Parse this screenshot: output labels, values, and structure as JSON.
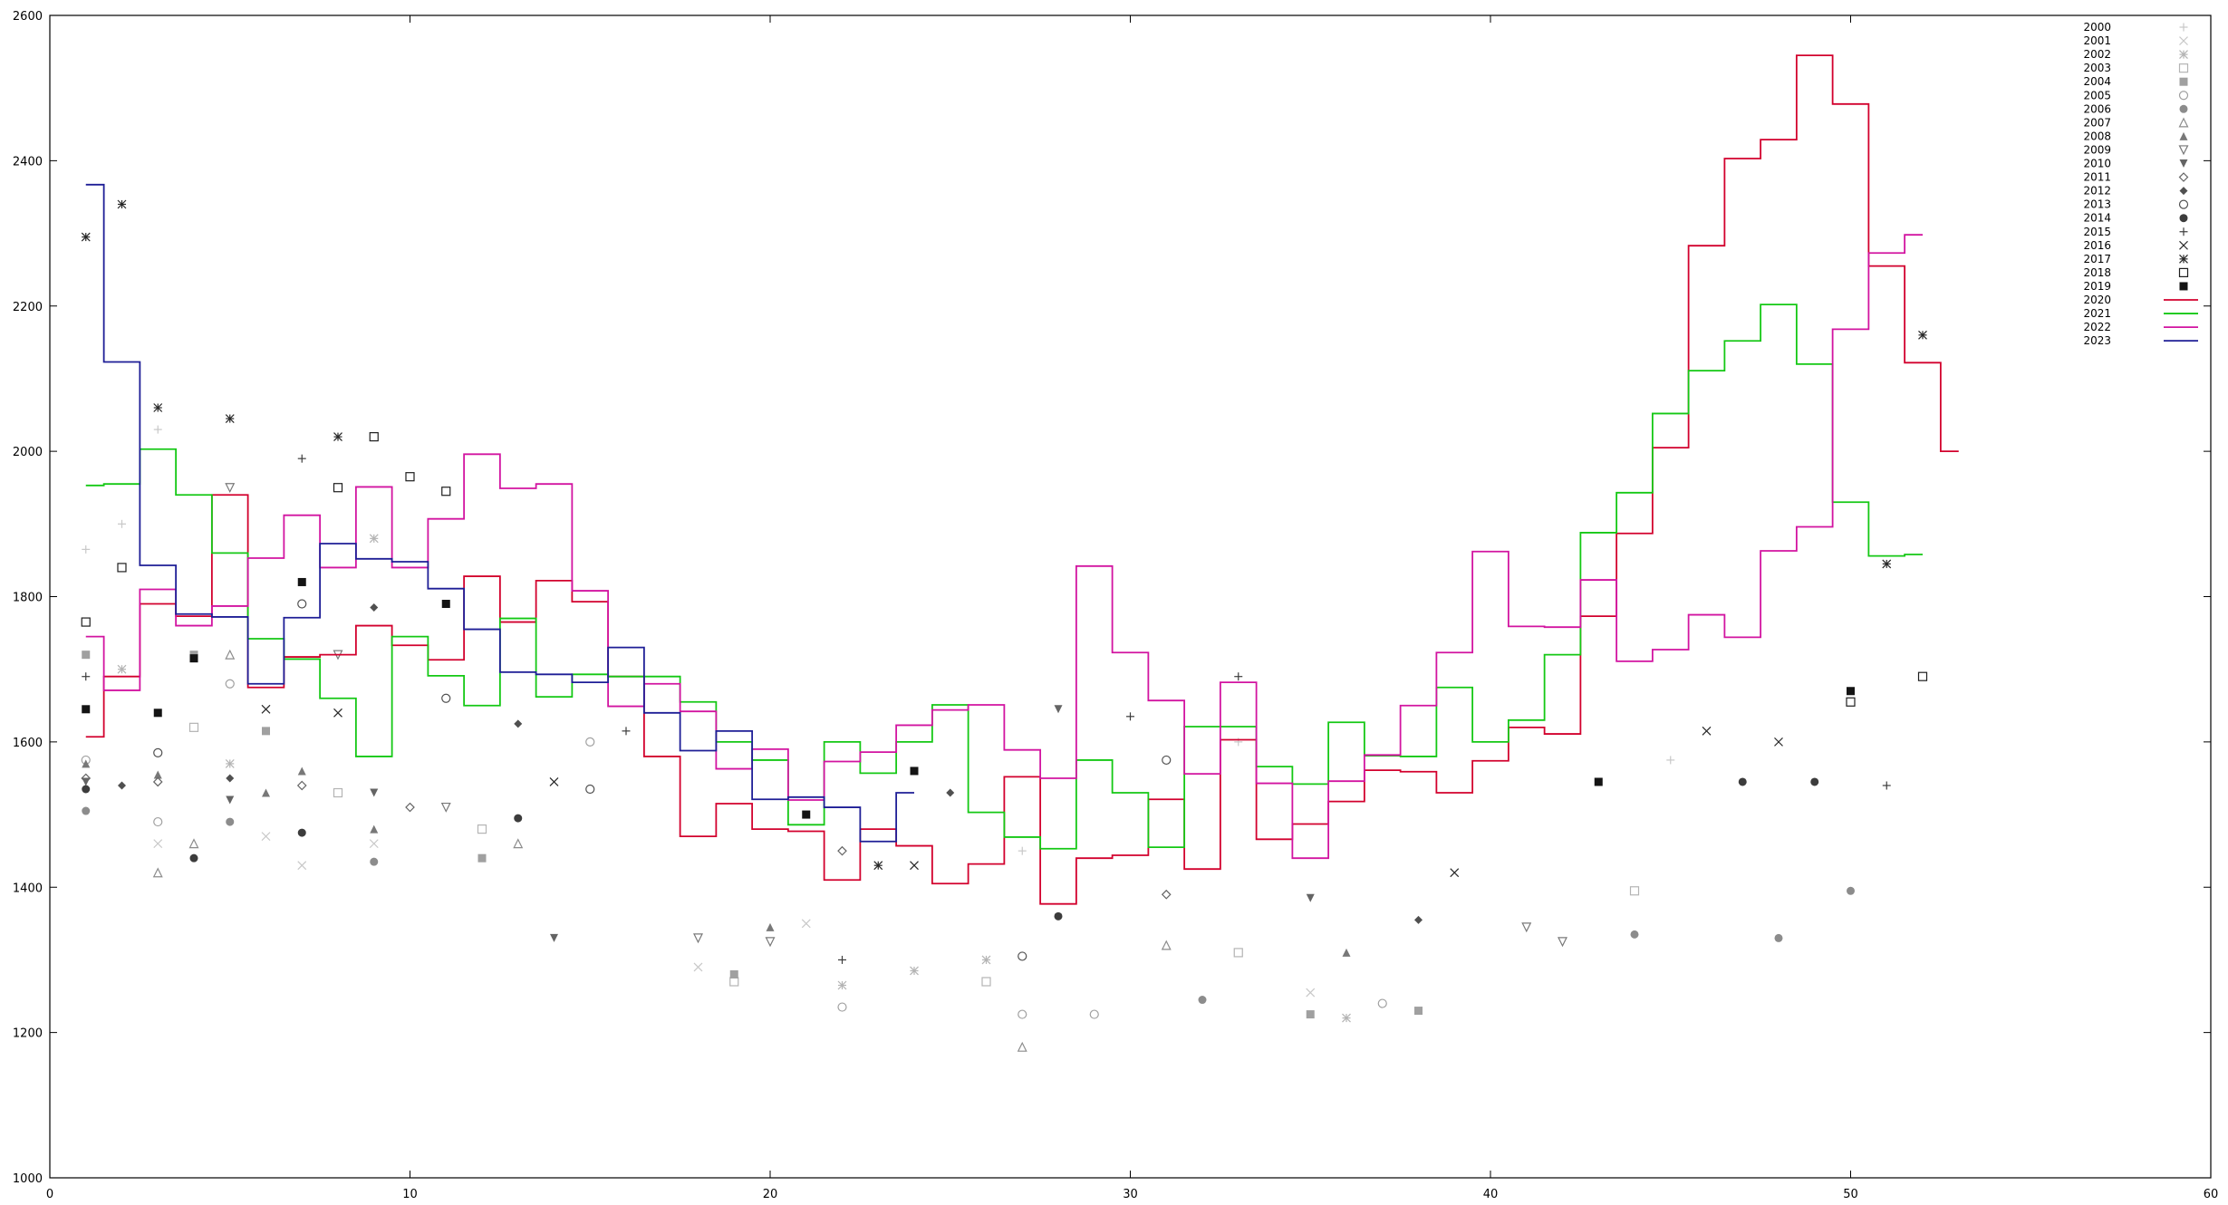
{
  "chart_data": {
    "type": "scatter",
    "title": "",
    "xlabel": "",
    "ylabel": "",
    "xlim": [
      0,
      60
    ],
    "ylim": [
      1000,
      2600
    ],
    "xticks": [
      0,
      10,
      20,
      30,
      40,
      50,
      60
    ],
    "yticks": [
      1000,
      1200,
      1400,
      1600,
      1800,
      2000,
      2200,
      2400,
      2600
    ],
    "grid": false,
    "legend_position": "top-right",
    "scatter_series": [
      {
        "name": "2000",
        "marker": "plus",
        "color": "#c8c8c8",
        "points": [
          [
            1,
            1865
          ],
          [
            2,
            1900
          ],
          [
            3,
            2030
          ],
          [
            27,
            1450
          ],
          [
            33,
            1600
          ],
          [
            45,
            1575
          ]
        ]
      },
      {
        "name": "2001",
        "marker": "x",
        "color": "#c8c8c8",
        "points": [
          [
            3,
            1460
          ],
          [
            6,
            1470
          ],
          [
            7,
            1430
          ],
          [
            9,
            1460
          ],
          [
            18,
            1290
          ],
          [
            21,
            1350
          ],
          [
            35,
            1255
          ]
        ]
      },
      {
        "name": "2002",
        "marker": "asterisk",
        "color": "#b4b4b4",
        "points": [
          [
            2,
            1700
          ],
          [
            5,
            1570
          ],
          [
            9,
            1880
          ],
          [
            22,
            1265
          ],
          [
            24,
            1285
          ],
          [
            26,
            1300
          ],
          [
            36,
            1220
          ]
        ]
      },
      {
        "name": "2003",
        "marker": "square-open",
        "color": "#b4b4b4",
        "points": [
          [
            4,
            1620
          ],
          [
            8,
            1530
          ],
          [
            12,
            1480
          ],
          [
            19,
            1270
          ],
          [
            26,
            1270
          ],
          [
            33,
            1310
          ],
          [
            44,
            1395
          ]
        ]
      },
      {
        "name": "2004",
        "marker": "square-filled",
        "color": "#a0a0a0",
        "points": [
          [
            1,
            1720
          ],
          [
            4,
            1720
          ],
          [
            6,
            1615
          ],
          [
            12,
            1440
          ],
          [
            19,
            1280
          ],
          [
            35,
            1225
          ],
          [
            38,
            1230
          ]
        ]
      },
      {
        "name": "2005",
        "marker": "circle-open",
        "color": "#a0a0a0",
        "points": [
          [
            1,
            1575
          ],
          [
            3,
            1490
          ],
          [
            5,
            1680
          ],
          [
            15,
            1600
          ],
          [
            22,
            1235
          ],
          [
            27,
            1225
          ],
          [
            29,
            1225
          ],
          [
            37,
            1240
          ]
        ]
      },
      {
        "name": "2006",
        "marker": "circle-filled",
        "color": "#8c8c8c",
        "points": [
          [
            1,
            1505
          ],
          [
            5,
            1490
          ],
          [
            9,
            1435
          ],
          [
            32,
            1245
          ],
          [
            44,
            1335
          ],
          [
            48,
            1330
          ],
          [
            50,
            1395
          ]
        ]
      },
      {
        "name": "2007",
        "marker": "triangle-open",
        "color": "#8c8c8c",
        "points": [
          [
            3,
            1420
          ],
          [
            4,
            1460
          ],
          [
            5,
            1720
          ],
          [
            13,
            1460
          ],
          [
            27,
            1180
          ],
          [
            31,
            1320
          ]
        ]
      },
      {
        "name": "2008",
        "marker": "triangle-filled",
        "color": "#787878",
        "points": [
          [
            1,
            1570
          ],
          [
            3,
            1555
          ],
          [
            6,
            1530
          ],
          [
            7,
            1560
          ],
          [
            9,
            1480
          ],
          [
            20,
            1345
          ],
          [
            36,
            1310
          ]
        ]
      },
      {
        "name": "2009",
        "marker": "triangle-down-open",
        "color": "#787878",
        "points": [
          [
            5,
            1950
          ],
          [
            8,
            1720
          ],
          [
            11,
            1510
          ],
          [
            18,
            1330
          ],
          [
            20,
            1325
          ],
          [
            41,
            1345
          ],
          [
            42,
            1325
          ]
        ]
      },
      {
        "name": "2010",
        "marker": "triangle-down-filled",
        "color": "#646464",
        "points": [
          [
            1,
            1545
          ],
          [
            5,
            1520
          ],
          [
            9,
            1530
          ],
          [
            14,
            1330
          ],
          [
            28,
            1645
          ],
          [
            35,
            1385
          ]
        ]
      },
      {
        "name": "2011",
        "marker": "diamond-open",
        "color": "#646464",
        "points": [
          [
            1,
            1550
          ],
          [
            3,
            1545
          ],
          [
            7,
            1540
          ],
          [
            10,
            1510
          ],
          [
            22,
            1450
          ],
          [
            31,
            1390
          ]
        ]
      },
      {
        "name": "2012",
        "marker": "diamond-filled",
        "color": "#505050",
        "points": [
          [
            2,
            1540
          ],
          [
            5,
            1550
          ],
          [
            9,
            1785
          ],
          [
            13,
            1625
          ],
          [
            25,
            1530
          ],
          [
            38,
            1355
          ]
        ]
      },
      {
        "name": "2013",
        "marker": "circle-open",
        "color": "#505050",
        "points": [
          [
            3,
            1585
          ],
          [
            7,
            1790
          ],
          [
            11,
            1660
          ],
          [
            15,
            1535
          ],
          [
            27,
            1305
          ],
          [
            31,
            1575
          ]
        ]
      },
      {
        "name": "2014",
        "marker": "circle-filled",
        "color": "#3c3c3c",
        "points": [
          [
            1,
            1535
          ],
          [
            4,
            1440
          ],
          [
            7,
            1475
          ],
          [
            13,
            1495
          ],
          [
            28,
            1360
          ],
          [
            47,
            1545
          ],
          [
            49,
            1545
          ]
        ]
      },
      {
        "name": "2015",
        "marker": "plus",
        "color": "#3c3c3c",
        "points": [
          [
            1,
            1690
          ],
          [
            7,
            1990
          ],
          [
            16,
            1615
          ],
          [
            22,
            1300
          ],
          [
            30,
            1635
          ],
          [
            33,
            1690
          ],
          [
            51,
            1540
          ]
        ]
      },
      {
        "name": "2016",
        "marker": "x",
        "color": "#282828",
        "points": [
          [
            6,
            1645
          ],
          [
            8,
            1640
          ],
          [
            14,
            1545
          ],
          [
            24,
            1430
          ],
          [
            39,
            1420
          ],
          [
            46,
            1615
          ],
          [
            48,
            1600
          ]
        ]
      },
      {
        "name": "2017",
        "marker": "asterisk",
        "color": "#282828",
        "points": [
          [
            1,
            2295
          ],
          [
            2,
            2340
          ],
          [
            3,
            2060
          ],
          [
            5,
            2045
          ],
          [
            8,
            2020
          ],
          [
            23,
            1430
          ],
          [
            51,
            1845
          ],
          [
            52,
            2160
          ]
        ]
      },
      {
        "name": "2018",
        "marker": "square-open",
        "color": "#1e1e1e",
        "points": [
          [
            1,
            1765
          ],
          [
            2,
            1840
          ],
          [
            8,
            1950
          ],
          [
            9,
            2020
          ],
          [
            11,
            1945
          ],
          [
            10,
            1965
          ],
          [
            50,
            1655
          ],
          [
            52,
            1690
          ]
        ]
      },
      {
        "name": "2019",
        "marker": "square-filled",
        "color": "#141414",
        "points": [
          [
            1,
            1645
          ],
          [
            3,
            1640
          ],
          [
            4,
            1715
          ],
          [
            7,
            1820
          ],
          [
            11,
            1790
          ],
          [
            21,
            1500
          ],
          [
            24,
            1560
          ],
          [
            43,
            1545
          ],
          [
            50,
            1670
          ]
        ]
      }
    ],
    "step_series": [
      {
        "name": "2020",
        "color": "#d2002d",
        "x": [
          1,
          2,
          3,
          4,
          5,
          6,
          7,
          8,
          9,
          10,
          11,
          12,
          13,
          14,
          15,
          16,
          17,
          18,
          19,
          20,
          21,
          22,
          23,
          24,
          25,
          26,
          27,
          28,
          29,
          30,
          31,
          32,
          33,
          34,
          35,
          36,
          37,
          38,
          39,
          40,
          41,
          42,
          43,
          44,
          45,
          46,
          47,
          48,
          49,
          50,
          51,
          52,
          53
        ],
        "values": [
          1607,
          1690,
          1790,
          1773,
          1940,
          1675,
          1717,
          1720,
          1760,
          1733,
          1713,
          1828,
          1765,
          1822,
          1793,
          1690,
          1580,
          1470,
          1515,
          1480,
          1477,
          1410,
          1480,
          1457,
          1405,
          1432,
          1552,
          1377,
          1440,
          1444,
          1521,
          1425,
          1603,
          1466,
          1487,
          1518,
          1561,
          1559,
          1530,
          1574,
          1620,
          1611,
          1773,
          1887,
          2005,
          2283,
          2403,
          2429,
          2545,
          2478,
          2255,
          2122,
          2000
        ]
      },
      {
        "name": "2021",
        "color": "#14c814",
        "x": [
          1,
          2,
          3,
          4,
          5,
          6,
          7,
          8,
          9,
          10,
          11,
          12,
          13,
          14,
          15,
          16,
          17,
          18,
          19,
          20,
          21,
          22,
          23,
          24,
          25,
          26,
          27,
          28,
          29,
          30,
          31,
          32,
          33,
          34,
          35,
          36,
          37,
          38,
          39,
          40,
          41,
          42,
          43,
          44,
          45,
          46,
          47,
          48,
          49,
          50,
          51,
          52
        ],
        "values": [
          1953,
          1955,
          2003,
          1940,
          1860,
          1742,
          1714,
          1660,
          1580,
          1745,
          1691,
          1650,
          1770,
          1662,
          1693,
          1690,
          1690,
          1655,
          1600,
          1575,
          1486,
          1600,
          1557,
          1600,
          1651,
          1503,
          1469,
          1453,
          1575,
          1530,
          1455,
          1621,
          1621,
          1566,
          1542,
          1627,
          1581,
          1580,
          1675,
          1600,
          1630,
          1720,
          1888,
          1943,
          2052,
          2111,
          2152,
          2202,
          2120,
          1930,
          1856,
          1858
        ]
      },
      {
        "name": "2022",
        "color": "#d214a0",
        "x": [
          1,
          2,
          3,
          4,
          5,
          6,
          7,
          8,
          9,
          10,
          11,
          12,
          13,
          14,
          15,
          16,
          17,
          18,
          19,
          20,
          21,
          22,
          23,
          24,
          25,
          26,
          27,
          28,
          29,
          30,
          31,
          32,
          33,
          34,
          35,
          36,
          37,
          38,
          39,
          40,
          41,
          42,
          43,
          44,
          45,
          46,
          47,
          48,
          49,
          50,
          51,
          52
        ],
        "values": [
          1745,
          1671,
          1810,
          1760,
          1787,
          1853,
          1912,
          1840,
          1951,
          1840,
          1907,
          1996,
          1949,
          1955,
          1808,
          1649,
          1680,
          1642,
          1563,
          1590,
          1520,
          1573,
          1586,
          1623,
          1644,
          1651,
          1589,
          1550,
          1842,
          1723,
          1657,
          1556,
          1682,
          1543,
          1440,
          1546,
          1582,
          1650,
          1723,
          1862,
          1759,
          1758,
          1823,
          1711,
          1727,
          1775,
          1744,
          1863,
          1896,
          2168,
          2273,
          2298
        ]
      },
      {
        "name": "2023",
        "color": "#1e1e96",
        "x": [
          1,
          2,
          3,
          4,
          5,
          6,
          7,
          8,
          9,
          10,
          11,
          12,
          13,
          14,
          15,
          16,
          17,
          18,
          19,
          20,
          21,
          22,
          23,
          24
        ],
        "values": [
          2367,
          2123,
          1843,
          1776,
          1772,
          1680,
          1771,
          1873,
          1852,
          1848,
          1811,
          1755,
          1696,
          1693,
          1682,
          1730,
          1640,
          1588,
          1615,
          1521,
          1524,
          1510,
          1463,
          1530
        ]
      }
    ]
  }
}
